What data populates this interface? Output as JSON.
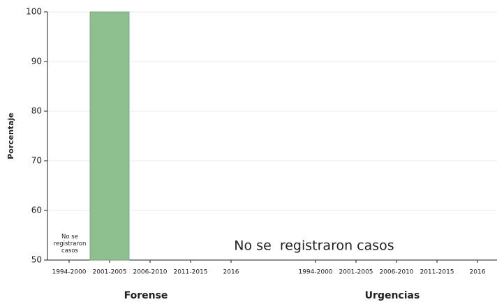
{
  "chart_data": [
    {
      "type": "bar",
      "title": "Forense",
      "ylabel": "Porcentaje",
      "categories": [
        "1994-2000",
        "2001-2005",
        "2006-2010",
        "2011-2015",
        "2016"
      ],
      "values": [
        null,
        100,
        null,
        null,
        null
      ],
      "color": "#8dbf8f",
      "ylim": [
        50,
        100
      ],
      "yticks": [
        50,
        60,
        70,
        80,
        90,
        100
      ],
      "grid": true,
      "annotation": "No se registraron casos"
    },
    {
      "type": "bar",
      "title": "Urgencias",
      "categories": [
        "1994-2000",
        "2001-2005",
        "2006-2010",
        "2011-2015",
        "2016"
      ],
      "values": [
        null,
        null,
        null,
        null,
        null
      ],
      "color": "#8dbf8f",
      "ylim": [
        50,
        100
      ],
      "grid": true,
      "annotation": "No se  registraron casos"
    }
  ]
}
